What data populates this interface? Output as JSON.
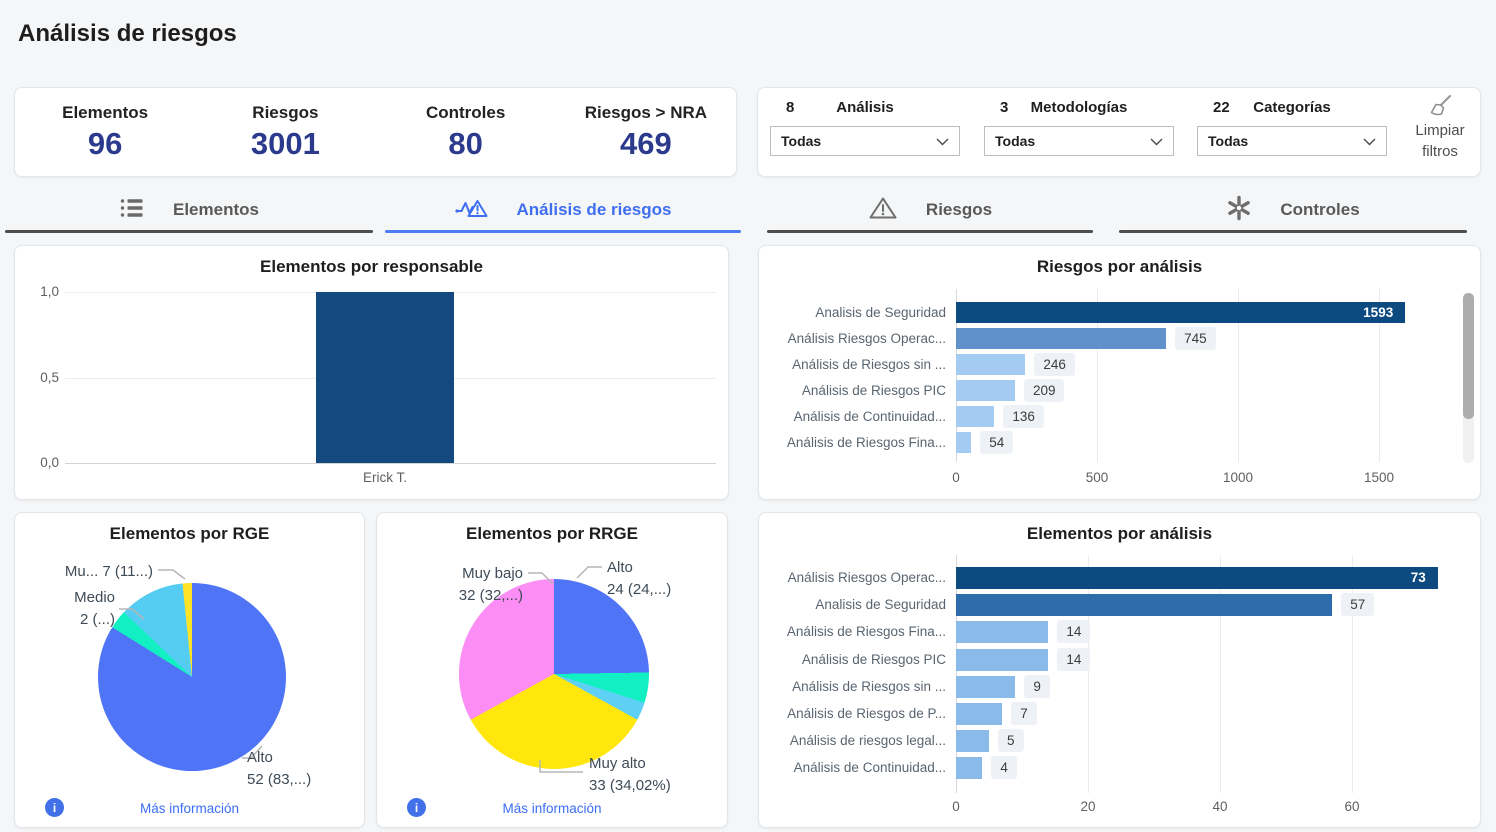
{
  "page": {
    "title": "Análisis de riesgos"
  },
  "kpis": [
    {
      "label": "Elementos",
      "value": "96"
    },
    {
      "label": "Riesgos",
      "value": "3001"
    },
    {
      "label": "Controles",
      "value": "80"
    },
    {
      "label": "Riesgos > NRA",
      "value": "469"
    }
  ],
  "filters": {
    "groups": [
      {
        "count": "8",
        "label": "Análisis",
        "value": "Todas"
      },
      {
        "count": "3",
        "label": "Metodologías",
        "value": "Todas"
      },
      {
        "count": "22",
        "label": "Categorías",
        "value": "Todas"
      }
    ],
    "clear_line1": "Limpiar",
    "clear_line2": "filtros"
  },
  "tabs": [
    {
      "label": "Elementos",
      "icon": "list-icon",
      "active": false
    },
    {
      "label": "Análisis de riesgos",
      "icon": "analysis-icon",
      "active": true
    },
    {
      "label": "Riesgos",
      "icon": "warning-icon",
      "active": false
    },
    {
      "label": "Controles",
      "icon": "controls-icon",
      "active": false
    }
  ],
  "links": {
    "more_info": "Más información"
  },
  "colors": {
    "kpi_value": "#2b3a8c",
    "active_tab": "#3e6ff2",
    "bar_dark": "#0d4a80",
    "bar_medium": "#6191cb",
    "bar_steel": "#2e6cab",
    "bar_light": "#a4cbf2",
    "link_blue": "#3a6ef5"
  },
  "chart_data": [
    {
      "id": "elementos_por_responsable",
      "type": "bar",
      "orientation": "vertical",
      "title": "Elementos por responsable",
      "categories": [
        "Erick T."
      ],
      "values": [
        1
      ],
      "ylim": [
        0,
        1
      ],
      "yticks": [
        {
          "value": 1,
          "label": "1,0"
        },
        {
          "value": 0.5,
          "label": "0,5"
        },
        {
          "value": 0,
          "label": "0,0"
        }
      ],
      "bar_color": "#14497f",
      "grid": true
    },
    {
      "id": "riesgos_por_analisis",
      "type": "bar",
      "orientation": "horizontal",
      "title": "Riesgos por análisis",
      "xlim": [
        0,
        1593
      ],
      "xticks": [
        0,
        500,
        1000,
        1500
      ],
      "bars": [
        {
          "label": "Analisis de Seguridad",
          "value": 1593,
          "color": "#0d4a80",
          "value_inside": true
        },
        {
          "label": "Análisis Riesgos Operac...",
          "value": 745,
          "color": "#6191cb",
          "value_inside": false
        },
        {
          "label": "Análisis de Riesgos sin ...",
          "value": 246,
          "color": "#a4cbf2",
          "value_inside": false
        },
        {
          "label": "Análisis de Riesgos PIC",
          "value": 209,
          "color": "#a4cbf2",
          "value_inside": false
        },
        {
          "label": "Análisis de Continuidad...",
          "value": 136,
          "color": "#a4cbf2",
          "value_inside": false
        },
        {
          "label": "Análisis de Riesgos Fina...",
          "value": 54,
          "color": "#a4cbf2",
          "value_inside": false
        }
      ],
      "grid": true,
      "scrollbar": true
    },
    {
      "id": "elementos_por_rge",
      "type": "pie",
      "title": "Elementos por RGE",
      "slices": [
        {
          "name": "Alto",
          "value": 52,
          "color": "#4f74f6",
          "label_lines": [
            "Alto",
            "52 (83,...)"
          ]
        },
        {
          "name": "Medio",
          "value": 2,
          "color": "#12efc3",
          "label_lines": [
            "Medio",
            "2 (...)"
          ]
        },
        {
          "name": "Muy bajo",
          "value": 7,
          "color": "#55cdf2",
          "label_lines": [
            "Mu... 7 (11...)"
          ]
        },
        {
          "name": "",
          "value": 1,
          "color": "#ffe326",
          "label_lines": []
        }
      ]
    },
    {
      "id": "elementos_por_rrge",
      "type": "pie",
      "title": "Elementos por RRGE",
      "slices": [
        {
          "name": "Alto",
          "value": 24,
          "color": "#4f74f6",
          "label_lines": [
            "Alto",
            "24 (24,...)"
          ]
        },
        {
          "name": "",
          "value": 5,
          "color": "#12efc3",
          "label_lines": []
        },
        {
          "name": "",
          "value": 3,
          "color": "#5fd0f5",
          "label_lines": []
        },
        {
          "name": "Muy alto",
          "value": 33,
          "color": "#ffe70d",
          "label_lines": [
            "Muy alto",
            "33 (34,02%)"
          ]
        },
        {
          "name": "Muy bajo",
          "value": 32,
          "color": "#fb8df5",
          "label_lines": [
            "Muy bajo",
            "32 (32,...)"
          ]
        }
      ]
    },
    {
      "id": "elementos_por_analisis",
      "type": "bar",
      "orientation": "horizontal",
      "title": "Elementos por análisis",
      "xlim": [
        0,
        73
      ],
      "xticks": [
        0,
        20,
        40,
        60
      ],
      "bars": [
        {
          "label": "Análisis Riesgos Operac...",
          "value": 73,
          "color": "#0d4a80",
          "value_inside": true
        },
        {
          "label": "Analisis de Seguridad",
          "value": 57,
          "color": "#2e6cab",
          "value_inside": false
        },
        {
          "label": "Análisis de Riesgos Fina...",
          "value": 14,
          "color": "#8abaea",
          "value_inside": false
        },
        {
          "label": "Análisis de Riesgos PIC",
          "value": 14,
          "color": "#8abaea",
          "value_inside": false
        },
        {
          "label": "Análisis de Riesgos sin ...",
          "value": 9,
          "color": "#8abaea",
          "value_inside": false
        },
        {
          "label": "Análisis de Riesgos de P...",
          "value": 7,
          "color": "#8abaea",
          "value_inside": false
        },
        {
          "label": "Análisis de riesgos legal...",
          "value": 5,
          "color": "#8abaea",
          "value_inside": false
        },
        {
          "label": "Análisis de Continuidad...",
          "value": 4,
          "color": "#8abaea",
          "value_inside": false
        }
      ],
      "grid": true
    }
  ]
}
